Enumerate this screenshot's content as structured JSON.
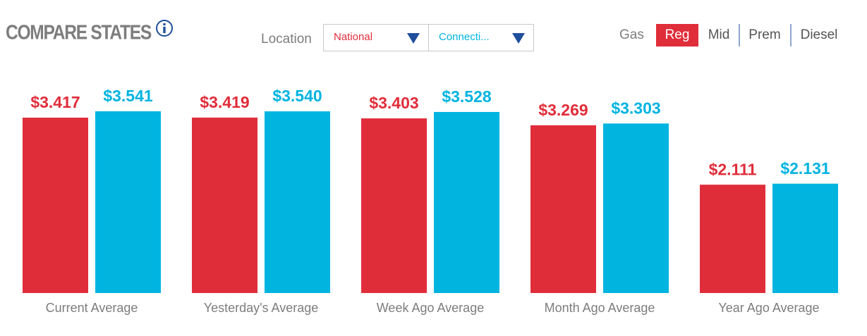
{
  "header": {
    "title": "COMPARE STATES"
  },
  "controls": {
    "location_label": "Location",
    "fuel_label": "Gas",
    "fuel_options": [
      "Reg",
      "Mid",
      "Prem",
      "Diesel"
    ]
  },
  "chart_data": {
    "type": "bar",
    "categories": [
      "Current Average",
      "Yesterday's Average",
      "Week Ago Average",
      "Month Ago Average",
      "Year Ago Average"
    ],
    "series": [
      {
        "name": "National",
        "color": "#e02d3a",
        "values": [
          3.417,
          3.419,
          3.403,
          3.269,
          2.111
        ],
        "value_labels": [
          "$3.417",
          "$3.419",
          "$3.403",
          "$3.269",
          "$2.111"
        ]
      },
      {
        "name": "Connecti...",
        "color": "#00b4e0",
        "values": [
          3.541,
          3.54,
          3.528,
          3.303,
          2.131
        ],
        "value_labels": [
          "$3.541",
          "$3.540",
          "$3.528",
          "$3.303",
          "$2.131"
        ]
      }
    ]
  }
}
